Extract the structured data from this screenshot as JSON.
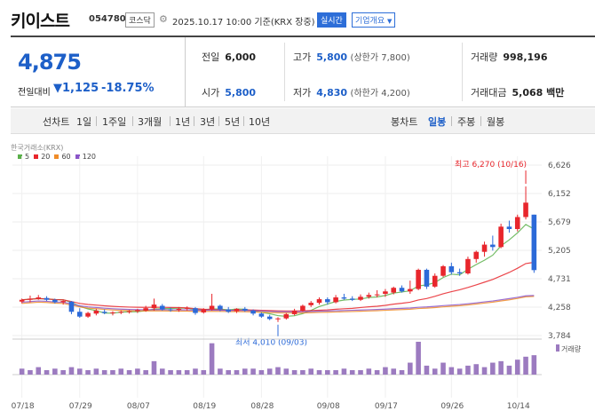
{
  "header": {
    "title": "키이스트",
    "code": "054780",
    "market": "코스닥",
    "datetime": "2025.10.17 10:00 기준(KRX 장중)",
    "live": "실시간",
    "info": "기업개요"
  },
  "price": {
    "current": "4,875",
    "change_label": "전일대비",
    "change": "1,125",
    "percent": "-18.75%"
  },
  "stats": {
    "prev": {
      "label": "전일",
      "value": "6,000"
    },
    "high": {
      "label": "고가",
      "value": "5,800",
      "sub": "(상한가 7,800)"
    },
    "volume": {
      "label": "거래량",
      "value": "998,196"
    },
    "open": {
      "label": "시가",
      "value": "5,800"
    },
    "low": {
      "label": "저가",
      "value": "4,830",
      "sub": "(하한가 4,200)"
    },
    "amount": {
      "label": "거래대금",
      "value": "5,068 백만"
    }
  },
  "tabs": {
    "line": {
      "label": "선차트",
      "items": [
        "1일",
        "1주일",
        "3개월",
        "1년",
        "3년",
        "5년",
        "10년"
      ]
    },
    "candle": {
      "label": "봉차트",
      "items": [
        "일봉",
        "주봉",
        "월봉"
      ],
      "active": "일봉"
    }
  },
  "colors": {
    "up": "#e8262c",
    "down": "#2c6ad8",
    "ma5": "#5bb04a",
    "ma20": "#e8262c",
    "ma60": "#f08c28",
    "ma120": "#8a55c8",
    "volume": "#9c7bc0"
  },
  "chart_data": {
    "type": "candlestick",
    "source_label": "한국거래소(KRX)",
    "legend": [
      "5",
      "20",
      "60",
      "120"
    ],
    "y_ticks": [
      "6,626",
      "6,152",
      "5,679",
      "5,205",
      "4,731",
      "4,258",
      "3,784"
    ],
    "ylim": [
      3784,
      6626
    ],
    "x_ticks": [
      "07/18",
      "07/29",
      "08/07",
      "08/19",
      "08/28",
      "09/08",
      "09/17",
      "09/26",
      "10/14"
    ],
    "high_annotation": "최고 6,270 (10/16)",
    "low_annotation": "최저 4,010 (09/03)",
    "volume_label": "거래량",
    "candles": [
      [
        4350,
        4400,
        4320,
        4380
      ],
      [
        4380,
        4450,
        4340,
        4400
      ],
      [
        4400,
        4460,
        4380,
        4420
      ],
      [
        4410,
        4440,
        4360,
        4380
      ],
      [
        4380,
        4400,
        4320,
        4340
      ],
      [
        4340,
        4380,
        4300,
        4360
      ],
      [
        4350,
        4360,
        4140,
        4180
      ],
      [
        4180,
        4240,
        4080,
        4100
      ],
      [
        4100,
        4180,
        4080,
        4160
      ],
      [
        4150,
        4230,
        4120,
        4200
      ],
      [
        4180,
        4220,
        4140,
        4160
      ],
      [
        4160,
        4190,
        4120,
        4170
      ],
      [
        4170,
        4200,
        4140,
        4180
      ],
      [
        4180,
        4210,
        4150,
        4190
      ],
      [
        4190,
        4230,
        4160,
        4210
      ],
      [
        4200,
        4280,
        4180,
        4240
      ],
      [
        4240,
        4400,
        4200,
        4300
      ],
      [
        4280,
        4310,
        4200,
        4220
      ],
      [
        4220,
        4250,
        4180,
        4210
      ],
      [
        4210,
        4260,
        4180,
        4230
      ],
      [
        4230,
        4270,
        4200,
        4250
      ],
      [
        4240,
        4260,
        4130,
        4160
      ],
      [
        4170,
        4240,
        4150,
        4220
      ],
      [
        4220,
        4480,
        4200,
        4280
      ],
      [
        4280,
        4300,
        4190,
        4220
      ],
      [
        4220,
        4260,
        4160,
        4180
      ],
      [
        4190,
        4240,
        4160,
        4230
      ],
      [
        4230,
        4260,
        4180,
        4200
      ],
      [
        4200,
        4220,
        4120,
        4150
      ],
      [
        4150,
        4170,
        4080,
        4100
      ],
      [
        4100,
        4130,
        4040,
        4060
      ],
      [
        4060,
        4090,
        4010,
        4070
      ],
      [
        4070,
        4160,
        4050,
        4140
      ],
      [
        4140,
        4230,
        4120,
        4200
      ],
      [
        4200,
        4300,
        4180,
        4280
      ],
      [
        4290,
        4360,
        4260,
        4330
      ],
      [
        4330,
        4420,
        4300,
        4390
      ],
      [
        4390,
        4420,
        4300,
        4340
      ],
      [
        4340,
        4460,
        4320,
        4420
      ],
      [
        4420,
        4480,
        4380,
        4400
      ],
      [
        4400,
        4440,
        4360,
        4380
      ],
      [
        4380,
        4470,
        4360,
        4430
      ],
      [
        4430,
        4500,
        4400,
        4460
      ],
      [
        4460,
        4540,
        4420,
        4470
      ],
      [
        4480,
        4560,
        4430,
        4520
      ],
      [
        4500,
        4600,
        4470,
        4580
      ],
      [
        4580,
        4620,
        4500,
        4520
      ],
      [
        4520,
        4700,
        4480,
        4560
      ],
      [
        4560,
        4900,
        4540,
        4880
      ],
      [
        4880,
        4900,
        4560,
        4600
      ],
      [
        4600,
        4820,
        4580,
        4780
      ],
      [
        4780,
        4960,
        4760,
        4940
      ],
      [
        4940,
        5000,
        4800,
        4840
      ],
      [
        4840,
        4900,
        4780,
        4820
      ],
      [
        4820,
        5100,
        4800,
        5060
      ],
      [
        5060,
        5200,
        5000,
        5180
      ],
      [
        5180,
        5350,
        5100,
        5300
      ],
      [
        5300,
        5450,
        5200,
        5260
      ],
      [
        5260,
        5650,
        5240,
        5600
      ],
      [
        5600,
        5700,
        5500,
        5560
      ],
      [
        5560,
        5800,
        5520,
        5760
      ],
      [
        5760,
        6270,
        5720,
        6000
      ],
      [
        5800,
        5800,
        4830,
        4875
      ]
    ],
    "volumes": [
      4,
      3,
      5,
      3,
      4,
      3,
      5,
      4,
      3,
      4,
      3,
      3,
      4,
      3,
      4,
      3,
      9,
      4,
      3,
      3,
      3,
      4,
      3,
      21,
      4,
      3,
      3,
      4,
      4,
      3,
      4,
      5,
      4,
      3,
      3,
      4,
      3,
      3,
      3,
      4,
      3,
      3,
      4,
      3,
      5,
      4,
      3,
      8,
      22,
      6,
      4,
      8,
      5,
      4,
      6,
      7,
      5,
      8,
      9,
      6,
      10,
      12,
      13
    ]
  }
}
